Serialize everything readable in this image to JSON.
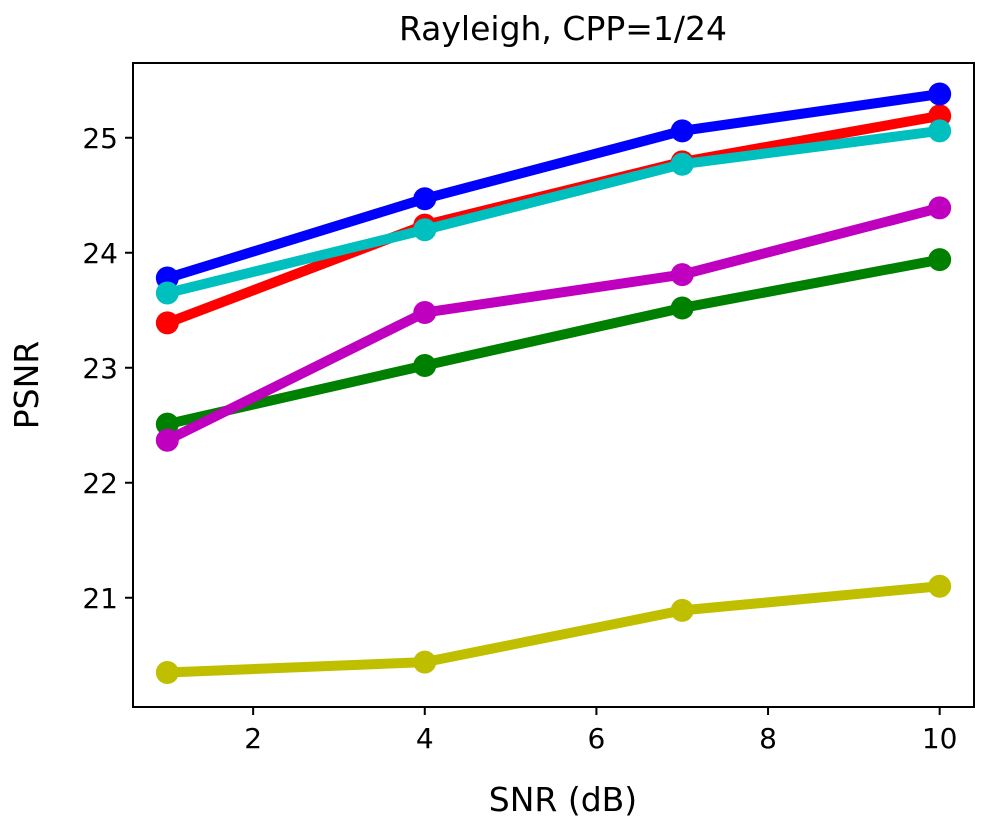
{
  "chart_data": {
    "type": "line",
    "title": "Rayleigh, CPP=1/24",
    "xlabel": "SNR (dB)",
    "ylabel": "PSNR",
    "xlim": [
      0.6,
      10.4
    ],
    "ylim": [
      20.05,
      25.65
    ],
    "xticks": [
      2,
      4,
      6,
      8,
      10
    ],
    "yticks": [
      21,
      22,
      23,
      24,
      25
    ],
    "x": [
      1,
      4,
      7,
      10
    ],
    "series": [
      {
        "name": "yellow",
        "color": "#bfbf00",
        "values": [
          20.35,
          20.44,
          20.89,
          21.1
        ]
      },
      {
        "name": "green",
        "color": "#008000",
        "values": [
          22.51,
          23.02,
          23.52,
          23.94
        ]
      },
      {
        "name": "magenta",
        "color": "#bf00bf",
        "values": [
          22.37,
          23.48,
          23.81,
          24.39
        ]
      },
      {
        "name": "red",
        "color": "#ff0000",
        "values": [
          23.39,
          24.24,
          24.79,
          25.19
        ]
      },
      {
        "name": "blue",
        "color": "#0000ff",
        "values": [
          23.78,
          24.47,
          25.06,
          25.38
        ]
      },
      {
        "name": "cyan",
        "color": "#00bfbf",
        "values": [
          23.65,
          24.2,
          24.77,
          25.06
        ]
      }
    ]
  }
}
